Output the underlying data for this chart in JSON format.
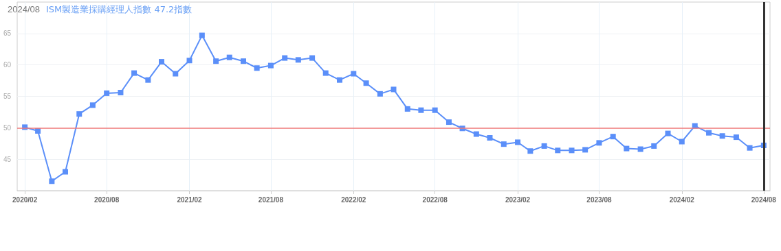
{
  "chart_data": {
    "type": "line",
    "title": "2024/08",
    "subtitle": "ISM製造業採購經理人指數 47.2指數",
    "x": [
      "2020-02",
      "2020-03",
      "2020-04",
      "2020-05",
      "2020-06",
      "2020-07",
      "2020-08",
      "2020-09",
      "2020-10",
      "2020-11",
      "2020-12",
      "2021-01",
      "2021-02",
      "2021-03",
      "2021-04",
      "2021-05",
      "2021-06",
      "2021-07",
      "2021-08",
      "2021-09",
      "2021-10",
      "2021-11",
      "2021-12",
      "2022-01",
      "2022-02",
      "2022-03",
      "2022-04",
      "2022-05",
      "2022-06",
      "2022-07",
      "2022-08",
      "2022-09",
      "2022-10",
      "2022-11",
      "2022-12",
      "2023-01",
      "2023-02",
      "2023-03",
      "2023-04",
      "2023-05",
      "2023-06",
      "2023-07",
      "2023-08",
      "2023-09",
      "2023-10",
      "2023-11",
      "2023-12",
      "2024-01",
      "2024-02",
      "2024-03",
      "2024-04",
      "2024-05",
      "2024-06",
      "2024-07",
      "2024-08"
    ],
    "series": [
      {
        "color": "#5b8ff9",
        "values": [
          50.1,
          49.5,
          41.5,
          43.0,
          52.2,
          53.6,
          55.5,
          55.6,
          58.7,
          57.6,
          60.5,
          58.6,
          60.7,
          64.7,
          60.6,
          61.2,
          60.6,
          59.5,
          59.9,
          61.1,
          60.8,
          61.1,
          58.7,
          57.6,
          58.6,
          57.1,
          55.4,
          56.1,
          53.0,
          52.8,
          52.8,
          50.9,
          49.9,
          49.0,
          48.4,
          47.4,
          47.7,
          46.3,
          47.1,
          46.4,
          46.4,
          46.5,
          47.6,
          48.6,
          46.7,
          46.6,
          47.1,
          49.1,
          47.8,
          50.3,
          49.2,
          48.7,
          48.5,
          46.8,
          47.2
        ]
      }
    ],
    "xlim": [
      "2020-01-15",
      "2024-08-15"
    ],
    "xticks": [
      {
        "value": "2020-02",
        "label": "2020/02"
      },
      {
        "value": "2020-08",
        "label": "2020/08"
      },
      {
        "value": "2021-02",
        "label": "2021/02"
      },
      {
        "value": "2021-08",
        "label": "2021/08"
      },
      {
        "value": "2022-02",
        "label": "2022/02"
      },
      {
        "value": "2022-08",
        "label": "2022/08"
      },
      {
        "value": "2023-02",
        "label": "2023/02"
      },
      {
        "value": "2023-08",
        "label": "2023/08"
      },
      {
        "value": "2024-02",
        "label": "2024/02"
      },
      {
        "value": "2024-08",
        "label": "2024/08"
      }
    ],
    "ylim": [
      40,
      70
    ],
    "yticks": [
      45,
      50,
      55,
      60,
      65
    ],
    "ref_lines": [
      {
        "axis": "y",
        "value": 50,
        "color": "#f07878"
      },
      {
        "axis": "x",
        "value": "2024-08",
        "color": "#333333"
      }
    ],
    "grid": true,
    "marker": "square",
    "line_style": "solid"
  }
}
